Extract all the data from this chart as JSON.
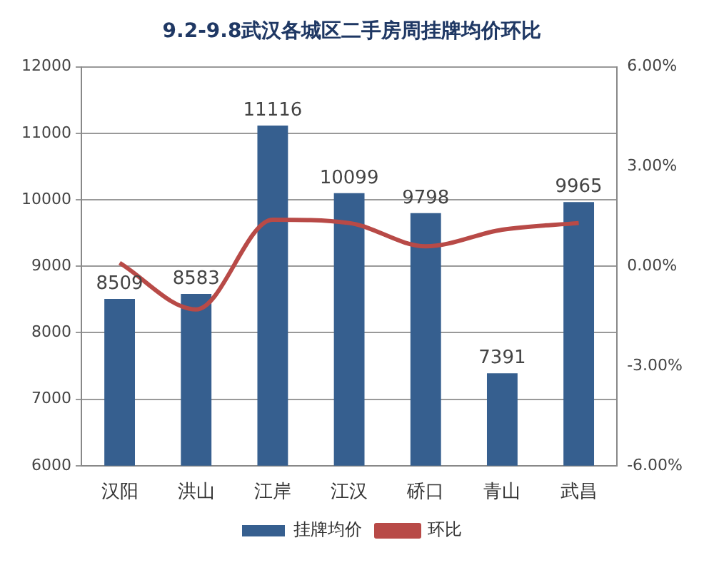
{
  "chart_data": {
    "type": "bar",
    "title": "9.2-9.8武汉各城区二手房周挂牌均价环比",
    "categories": [
      "汉阳",
      "洪山",
      "江岸",
      "江汉",
      "硚口",
      "青山",
      "武昌"
    ],
    "series": [
      {
        "name": "挂牌均价",
        "color": "#365f8f",
        "values": [
          8509,
          8583,
          11116,
          10099,
          9798,
          7391,
          9965
        ],
        "value_labels": [
          "8509",
          "8583",
          "11116",
          "10099",
          "9798",
          "7391",
          "9965"
        ]
      },
      {
        "name": "环比",
        "type": "line",
        "axis": "y2",
        "color": "#b84a47",
        "values": [
          0.1,
          -1.3,
          1.4,
          1.3,
          0.6,
          1.1,
          1.3
        ],
        "marker": "none"
      }
    ],
    "ylim": [
      6000,
      12000
    ],
    "yticks": [
      6000,
      7000,
      8000,
      9000,
      10000,
      11000,
      12000
    ],
    "y2lim": [
      -6,
      6
    ],
    "y2ticks": [
      {
        "value": -6,
        "label": "-6.00%"
      },
      {
        "value": -3,
        "label": "-3.00%"
      },
      {
        "value": 0,
        "label": "0.00%"
      },
      {
        "value": 3,
        "label": "3.00%"
      },
      {
        "value": 6,
        "label": "6.00%"
      }
    ],
    "grid": "y",
    "legend": "bottom"
  }
}
